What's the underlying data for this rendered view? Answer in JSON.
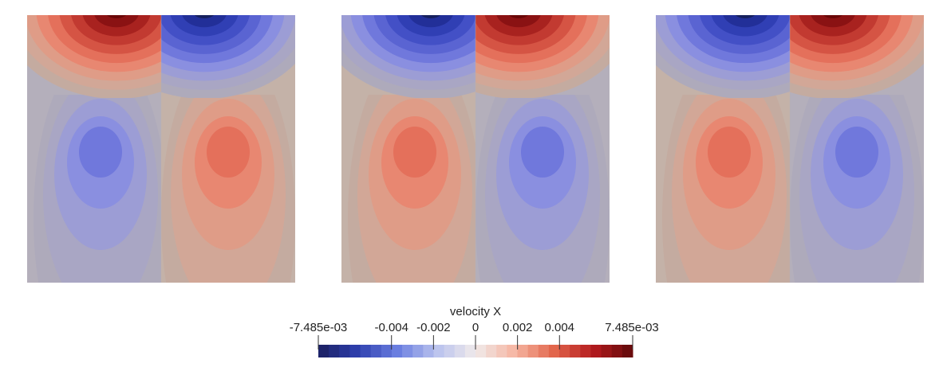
{
  "chart_data": {
    "type": "heatmap",
    "description_of_panels": "",
    "panels": [
      {
        "name": "",
        "top_left_lobe": "positive",
        "top_right_lobe": "negative",
        "bottom_left_cell": "negative",
        "bottom_right_cell": "positive"
      },
      {
        "name": "",
        "top_left_lobe": "negative",
        "top_right_lobe": "positive",
        "bottom_left_cell": "positive",
        "bottom_right_cell": "negative"
      },
      {
        "name": "",
        "top_left_lobe": "negative",
        "top_right_lobe": "positive",
        "bottom_left_cell": "positive",
        "bottom_right_cell": "negative"
      }
    ],
    "colorbar": {
      "title": "velocity X",
      "min": -0.007485,
      "max": 0.007485,
      "min_label": "-7.485e-03",
      "max_label": "7.485e-03",
      "ticks": [
        {
          "value": -0.004,
          "label": "-0.004"
        },
        {
          "value": -0.002,
          "label": "-0.002"
        },
        {
          "value": 0,
          "label": "0"
        },
        {
          "value": 0.002,
          "label": "0.002"
        },
        {
          "value": 0.004,
          "label": "0.004"
        }
      ],
      "colormap": [
        "#1a1f60",
        "#2e3fae",
        "#6a7ee0",
        "#b9c2ee",
        "#f0eaea",
        "#f6b6a2",
        "#e2664c",
        "#b41a1e",
        "#600a0a"
      ]
    }
  }
}
